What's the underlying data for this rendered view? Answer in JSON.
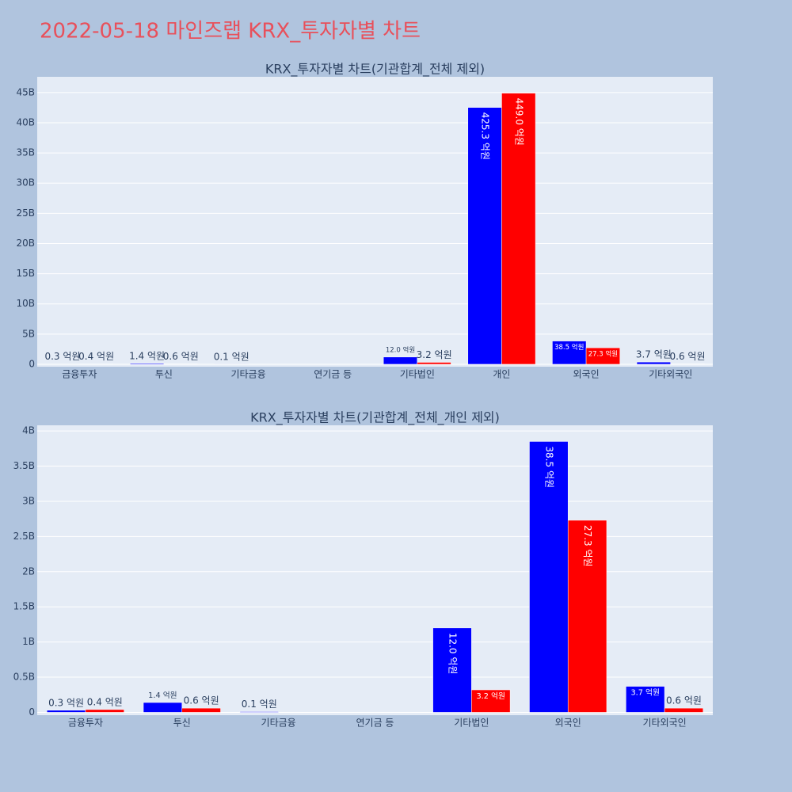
{
  "title": "2022-05-18 마인즈랩 KRX_투자자별 차트",
  "chart_data": [
    {
      "type": "bar",
      "title": "KRX_투자자별 차트(기관합계_전체 제외)",
      "categories": [
        "금융투자",
        "투신",
        "기타금융",
        "연기금 등",
        "기타법인",
        "개인",
        "외국인",
        "기타외국인"
      ],
      "series": [
        {
          "color": "#0000ff",
          "values": [
            30000000,
            140000000,
            10000000,
            null,
            1200000000,
            42530000000,
            3850000000,
            370000000
          ],
          "value_labels": [
            "0.3 억원",
            "1.4 억원",
            "0.1 억원",
            null,
            "12.0 억원",
            "425.3 억원",
            "38.5 억원",
            "3.7 억원"
          ]
        },
        {
          "color": "#ff0000",
          "values": [
            40000000,
            60000000,
            null,
            null,
            320000000,
            44900000000,
            2730000000,
            60000000
          ],
          "value_labels": [
            "0.4 억원",
            "0.6 억원",
            null,
            null,
            "3.2 억원",
            "449.0 억원",
            "27.3 억원",
            "0.6 억원"
          ]
        }
      ],
      "ylim": [
        -400000000,
        47600000000
      ],
      "yticks": [
        0,
        {
          "value": 5000000000,
          "label": "5B"
        },
        {
          "value": 10000000000,
          "label": "10B"
        },
        {
          "value": 15000000000,
          "label": "15B"
        },
        {
          "value": 20000000000,
          "label": "20B"
        },
        {
          "value": 25000000000,
          "label": "25B"
        },
        {
          "value": 30000000000,
          "label": "30B"
        },
        {
          "value": 35000000000,
          "label": "35B"
        },
        {
          "value": 40000000000,
          "label": "40B"
        },
        {
          "value": 45000000000,
          "label": "45B"
        }
      ],
      "grid": true
    },
    {
      "type": "bar",
      "title": "KRX_투자자별 차트(기관합계_전체_개인 제외)",
      "categories": [
        "금융투자",
        "투신",
        "기타금융",
        "연기금 등",
        "기타법인",
        "외국인",
        "기타외국인"
      ],
      "series": [
        {
          "color": "#0000ff",
          "values": [
            30000000,
            140000000,
            10000000,
            null,
            1200000000,
            3850000000,
            370000000
          ],
          "value_labels": [
            "0.3 억원",
            "1.4 억원",
            "0.1 억원",
            null,
            "12.0 억원",
            "38.5 억원",
            "3.7 억원"
          ]
        },
        {
          "color": "#ff0000",
          "values": [
            40000000,
            60000000,
            null,
            null,
            320000000,
            2730000000,
            60000000
          ],
          "value_labels": [
            "0.4 억원",
            "0.6 억원",
            null,
            null,
            "3.2 억원",
            "27.3 억원",
            "0.6 억원"
          ]
        }
      ],
      "ylim": [
        -40000000,
        4080000000
      ],
      "yticks": [
        0,
        {
          "value": 500000000,
          "label": "0.5B"
        },
        {
          "value": 1000000000,
          "label": "1B"
        },
        {
          "value": 1500000000,
          "label": "1.5B"
        },
        {
          "value": 2000000000,
          "label": "2B"
        },
        {
          "value": 2500000000,
          "label": "2.5B"
        },
        {
          "value": 3000000000,
          "label": "3B"
        },
        {
          "value": 3500000000,
          "label": "3.5B"
        },
        {
          "value": 4000000000,
          "label": "4B"
        }
      ],
      "grid": true
    }
  ]
}
